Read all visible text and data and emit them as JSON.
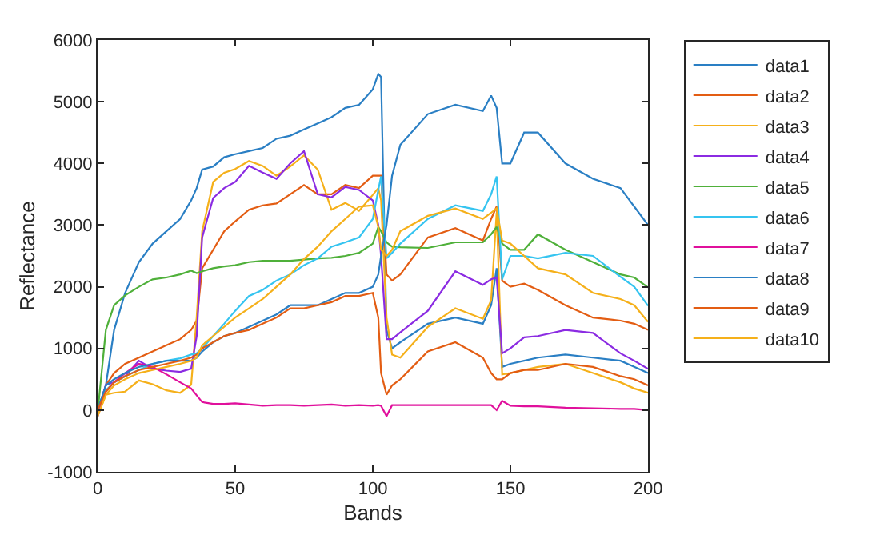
{
  "chart_data": {
    "type": "line",
    "xlabel": "Bands",
    "ylabel": "Reflectance",
    "xlim": [
      0,
      200
    ],
    "xticks": [
      0,
      50,
      100,
      150,
      200
    ],
    "ylim": [
      -1000,
      6000
    ],
    "yticks": [
      -1000,
      0,
      1000,
      2000,
      3000,
      4000,
      5000,
      6000
    ],
    "legend": "right",
    "marker": "none",
    "line_style": "solid",
    "x": [
      0,
      3,
      6,
      10,
      15,
      20,
      25,
      30,
      34,
      36,
      38,
      42,
      46,
      50,
      55,
      60,
      65,
      70,
      75,
      80,
      85,
      90,
      95,
      100,
      102,
      103,
      105,
      107,
      110,
      120,
      130,
      140,
      143,
      145,
      147,
      150,
      155,
      160,
      170,
      180,
      190,
      195,
      200
    ],
    "series": [
      {
        "name": "data1",
        "color": "#2a7fc4",
        "values": [
          0,
          400,
          1300,
          1900,
          2400,
          2700,
          2900,
          3100,
          3400,
          3600,
          3900,
          3950,
          4100,
          4150,
          4200,
          4250,
          4400,
          4450,
          4550,
          4650,
          4750,
          4900,
          4950,
          5200,
          5450,
          5400,
          1300,
          1000,
          1100,
          1400,
          1500,
          1400,
          1700,
          2300,
          700,
          750,
          800,
          850,
          900,
          850,
          800,
          700,
          600
        ]
      },
      {
        "name": "data2",
        "color": "#e35d13",
        "values": [
          -50,
          400,
          600,
          750,
          850,
          950,
          1050,
          1150,
          1300,
          1450,
          2300,
          2600,
          2900,
          3060,
          3250,
          3320,
          3350,
          3500,
          3650,
          3500,
          3500,
          3650,
          3600,
          3800,
          3800,
          3800,
          2200,
          2100,
          2200,
          2800,
          2950,
          2750,
          3100,
          3300,
          2100,
          2000,
          2050,
          1950,
          1700,
          1500,
          1450,
          1400,
          1300
        ]
      },
      {
        "name": "data3",
        "color": "#f5b01a",
        "values": [
          -100,
          250,
          280,
          300,
          480,
          420,
          320,
          280,
          410,
          1500,
          2900,
          3700,
          3850,
          3910,
          4040,
          3960,
          3800,
          3950,
          4130,
          3900,
          3250,
          3360,
          3230,
          3490,
          3600,
          3400,
          1500,
          900,
          850,
          1350,
          1650,
          1480,
          1780,
          3200,
          580,
          600,
          650,
          700,
          750,
          600,
          450,
          350,
          280
        ]
      },
      {
        "name": "data4",
        "color": "#8b2be2",
        "values": [
          -50,
          410,
          450,
          550,
          800,
          670,
          640,
          620,
          670,
          1200,
          2800,
          3440,
          3600,
          3700,
          3960,
          3850,
          3750,
          4000,
          4200,
          3500,
          3450,
          3620,
          3570,
          3400,
          3000,
          2500,
          1150,
          1150,
          1260,
          1610,
          2250,
          2030,
          2120,
          2150,
          920,
          1000,
          1180,
          1200,
          1300,
          1250,
          920,
          800,
          670
        ]
      },
      {
        "name": "data5",
        "color": "#4fb03a",
        "values": [
          -50,
          1300,
          1700,
          1860,
          2000,
          2120,
          2150,
          2200,
          2260,
          2220,
          2250,
          2300,
          2330,
          2350,
          2400,
          2420,
          2420,
          2420,
          2440,
          2460,
          2470,
          2500,
          2550,
          2700,
          2970,
          2900,
          2720,
          2650,
          2640,
          2630,
          2720,
          2720,
          2850,
          2970,
          2700,
          2600,
          2600,
          2850,
          2600,
          2400,
          2200,
          2150,
          1990
        ]
      },
      {
        "name": "data6",
        "color": "#35c4f0",
        "values": [
          -100,
          320,
          450,
          550,
          650,
          750,
          800,
          840,
          900,
          920,
          1000,
          1200,
          1400,
          1610,
          1850,
          1950,
          2100,
          2200,
          2350,
          2460,
          2650,
          2720,
          2800,
          3100,
          3570,
          3790,
          2460,
          2550,
          2700,
          3100,
          3320,
          3230,
          3500,
          3790,
          2120,
          2500,
          2500,
          2460,
          2550,
          2500,
          2160,
          2000,
          1690
        ]
      },
      {
        "name": "data7",
        "color": "#e0109c",
        "values": [
          -100,
          300,
          450,
          600,
          750,
          700,
          580,
          450,
          350,
          240,
          130,
          100,
          100,
          110,
          90,
          70,
          80,
          80,
          70,
          80,
          90,
          70,
          80,
          70,
          80,
          70,
          -100,
          80,
          80,
          80,
          80,
          80,
          80,
          0,
          150,
          70,
          60,
          60,
          40,
          30,
          20,
          20,
          0
        ]
      },
      {
        "name": "data8",
        "color": "#2a7fc4",
        "values": [
          0,
          400,
          500,
          600,
          700,
          750,
          800,
          800,
          800,
          850,
          950,
          1100,
          1200,
          1250,
          1350,
          1450,
          1550,
          1700,
          1700,
          1700,
          1800,
          1900,
          1900,
          2000,
          2200,
          2500,
          3000,
          3800,
          4300,
          4800,
          4950,
          4850,
          5100,
          4900,
          4000,
          4000,
          4500,
          4500,
          4000,
          3750,
          3600,
          3300,
          3000
        ]
      },
      {
        "name": "data9",
        "color": "#e35d13",
        "values": [
          0,
          300,
          450,
          550,
          650,
          700,
          750,
          800,
          850,
          900,
          1000,
          1100,
          1200,
          1250,
          1300,
          1400,
          1500,
          1650,
          1650,
          1700,
          1750,
          1850,
          1850,
          1900,
          1500,
          600,
          250,
          400,
          500,
          950,
          1100,
          850,
          600,
          500,
          500,
          600,
          650,
          650,
          750,
          700,
          550,
          500,
          400
        ]
      },
      {
        "name": "data10",
        "color": "#f5b01a",
        "values": [
          -100,
          250,
          400,
          500,
          600,
          650,
          700,
          750,
          800,
          850,
          1050,
          1200,
          1350,
          1500,
          1650,
          1800,
          2000,
          2200,
          2450,
          2650,
          2900,
          3100,
          3300,
          3320,
          2970,
          2600,
          2500,
          2600,
          2900,
          3150,
          3270,
          3100,
          3200,
          3270,
          2750,
          2700,
          2500,
          2300,
          2200,
          1900,
          1800,
          1700,
          1430
        ]
      }
    ]
  }
}
